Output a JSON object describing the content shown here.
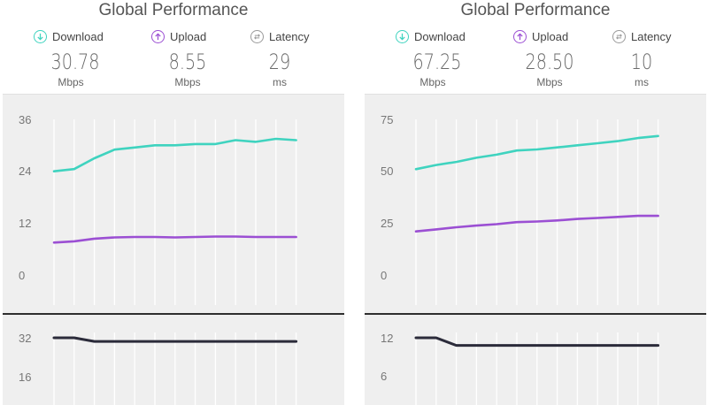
{
  "panels": [
    {
      "title": "Global Performance",
      "stats": [
        {
          "label": "Download",
          "value": "30.78",
          "unit": "Mbps",
          "icon": "download-arrow-icon",
          "color": "#3fd3bf"
        },
        {
          "label": "Upload",
          "value": "8.55",
          "unit": "Mbps",
          "icon": "upload-arrow-icon",
          "color": "#9b4fd3"
        },
        {
          "label": "Latency",
          "value": "29",
          "unit": "ms",
          "icon": "latency-icon",
          "color": "#9a9a9a"
        }
      ]
    },
    {
      "title": "Global Performance",
      "stats": [
        {
          "label": "Download",
          "value": "67.25",
          "unit": "Mbps",
          "icon": "download-arrow-icon",
          "color": "#3fd3bf"
        },
        {
          "label": "Upload",
          "value": "28.50",
          "unit": "Mbps",
          "icon": "upload-arrow-icon",
          "color": "#9b4fd3"
        },
        {
          "label": "Latency",
          "value": "10",
          "unit": "ms",
          "icon": "latency-icon",
          "color": "#9a9a9a"
        }
      ]
    }
  ],
  "chart_data": [
    {
      "type": "line",
      "ylim": [
        0,
        36
      ],
      "yticks": [
        "36",
        "24",
        "12",
        "0"
      ],
      "grid": true,
      "series": [
        {
          "color": "#3fd3bf",
          "values": [
            24,
            24.5,
            27,
            29,
            29.5,
            30,
            30,
            30.3,
            30.3,
            31.2,
            30.8,
            31.5,
            31.2
          ]
        },
        {
          "color": "#9b4fd3",
          "values": [
            7.5,
            7.8,
            8.4,
            8.7,
            8.8,
            8.8,
            8.7,
            8.8,
            8.9,
            8.9,
            8.8,
            8.8,
            8.8
          ]
        }
      ]
    },
    {
      "type": "line",
      "ylim": [
        0,
        75
      ],
      "yticks": [
        "75",
        "50",
        "25",
        "0"
      ],
      "grid": true,
      "series": [
        {
          "color": "#3fd3bf",
          "values": [
            51,
            53,
            54.5,
            56.5,
            58,
            60,
            60.5,
            61.5,
            62.5,
            63.5,
            64.5,
            66,
            67
          ]
        },
        {
          "color": "#9b4fd3",
          "values": [
            21,
            22,
            23,
            23.8,
            24.5,
            25.5,
            25.8,
            26.3,
            27,
            27.5,
            28,
            28.5,
            28.5
          ]
        }
      ]
    },
    {
      "type": "line",
      "yticks": [
        "32",
        "16"
      ],
      "grid": true,
      "series": [
        {
          "color": "#2b2b3a",
          "values": [
            32,
            32,
            30.5,
            30.5,
            30.5,
            30.5,
            30.5,
            30.5,
            30.5,
            30.5,
            30.5,
            30.5,
            30.5
          ]
        }
      ]
    },
    {
      "type": "line",
      "yticks": [
        "12",
        "6"
      ],
      "grid": true,
      "series": [
        {
          "color": "#2b2b3a",
          "values": [
            12,
            12,
            10.8,
            10.8,
            10.8,
            10.8,
            10.8,
            10.8,
            10.8,
            10.8,
            10.8,
            10.8,
            10.8
          ]
        }
      ]
    }
  ]
}
